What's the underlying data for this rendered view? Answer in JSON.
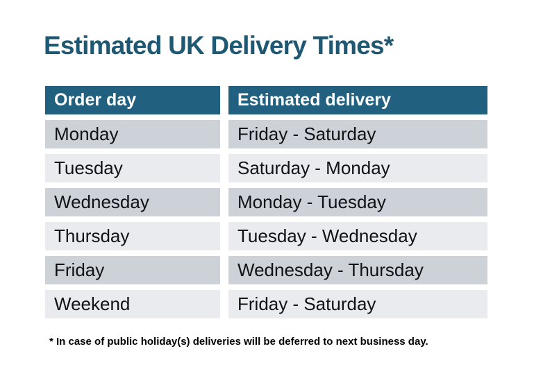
{
  "chart_data": {
    "type": "table",
    "title": "Estimated UK Delivery Times*",
    "columns": [
      "Order day",
      "Estimated delivery"
    ],
    "rows": [
      [
        "Monday",
        "Friday - Saturday"
      ],
      [
        "Tuesday",
        "Saturday - Monday"
      ],
      [
        "Wednesday",
        "Monday - Tuesday"
      ],
      [
        "Thursday",
        "Tuesday - Wednesday"
      ],
      [
        "Friday",
        "Wednesday - Thursday"
      ],
      [
        "Weekend",
        "Friday - Saturday"
      ]
    ],
    "footnote": "* In case of public holiday(s) deliveries will be deferred to next business day."
  },
  "colors": {
    "page_bg": "#ffffff",
    "title_color": "#1f5873",
    "header_bg": "#21607f",
    "header_text": "#ffffff",
    "row_dark": "#cdd2d9",
    "row_light": "#e9ebef",
    "body_text": "#101214"
  }
}
